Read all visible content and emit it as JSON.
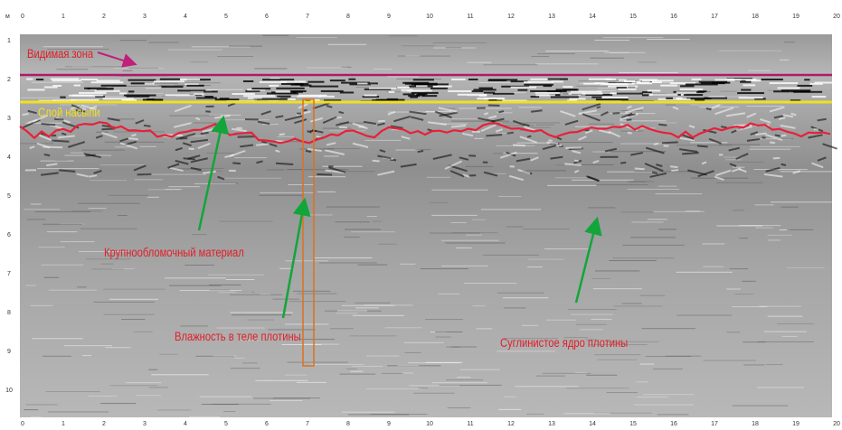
{
  "annotations": {
    "visible_zone": "Видимая зона",
    "fill_layer": "Слой насыпи",
    "coarse_material": "Крупнообломочный материал",
    "moisture": "Влажность в теле плотины",
    "loam_core": "Суглинистое ядро плотины"
  },
  "x_axis": {
    "unit": "м",
    "ticks": [
      "0",
      "1",
      "2",
      "3",
      "4",
      "5",
      "6",
      "7",
      "8",
      "9",
      "10",
      "11",
      "12",
      "13",
      "14",
      "15",
      "16",
      "17",
      "18",
      "19",
      "20"
    ]
  },
  "y_axis": {
    "ticks": [
      "1",
      "2",
      "3",
      "4",
      "5",
      "6",
      "7",
      "8",
      "9",
      "10"
    ]
  }
}
